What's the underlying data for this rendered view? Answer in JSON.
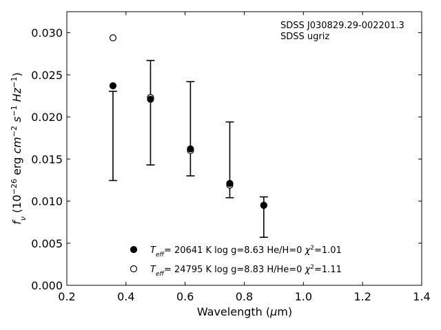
{
  "chart_data": {
    "type": "scatter",
    "annotations": [
      "SDSS J030829.29-002201.3",
      "SDSS ugriz"
    ],
    "xlabel": "Wavelength (μm)",
    "ylabel": "f_ν (10^-26 erg cm^-2 s^-1 Hz^-1)",
    "xlim": [
      0.2,
      1.4
    ],
    "ylim": [
      0.0,
      0.0325
    ],
    "x_ticks": [
      0.2,
      0.4,
      0.6,
      0.8,
      1.0,
      1.2,
      1.4
    ],
    "x_tick_labels": [
      "0.2",
      "0.4",
      "0.6",
      "0.8",
      "1.0",
      "1.2",
      "1.4"
    ],
    "y_ticks": [
      0.0,
      0.005,
      0.01,
      0.015,
      0.02,
      0.025,
      0.03
    ],
    "y_tick_labels": [
      "0.000",
      "0.005",
      "0.010",
      "0.015",
      "0.020",
      "0.025",
      "0.030"
    ],
    "grid": false,
    "legend_position": "bottom-center",
    "observed": {
      "x": [
        0.356,
        0.483,
        0.618,
        0.751,
        0.866
      ],
      "y": [
        0.01775,
        0.0205,
        0.0185,
        0.0149,
        0.0081
      ],
      "yerr_low": [
        0.0053,
        0.0062,
        0.0055,
        0.0045,
        0.0024
      ],
      "yerr_high": [
        0.0053,
        0.0062,
        0.0057,
        0.0045,
        0.0024
      ]
    },
    "series": [
      {
        "name": "Teff= 20641 K  log g=8.63  He/H=0  χ2=1.01",
        "marker": "filled-circle",
        "x": [
          0.356,
          0.483,
          0.618,
          0.751,
          0.866
        ],
        "y": [
          0.0237,
          0.0221,
          0.0162,
          0.0121,
          0.0095
        ]
      },
      {
        "name": "Teff= 24795 K  log g=8.83  H/He=0  χ2=1.11",
        "marker": "open-circle",
        "x": [
          0.356,
          0.483,
          0.618,
          0.751,
          0.866
        ],
        "y": [
          0.0294,
          0.0223,
          0.016,
          0.0119,
          0.0095
        ]
      }
    ]
  }
}
